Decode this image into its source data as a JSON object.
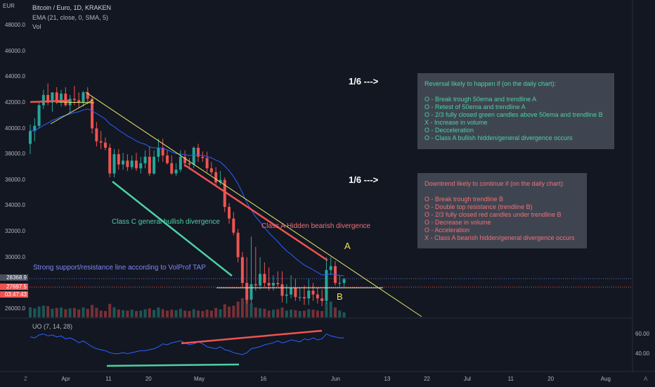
{
  "header": {
    "currency": "EUR",
    "title": "Bitcoin / Euro, 1D, KRAKEN",
    "ema_label": "EMA (21, close, 0, SMA, 5)",
    "vol_label": "Vol"
  },
  "price_axis": {
    "ticks": [
      "48000.0",
      "46000.0",
      "44000.0",
      "42000.0",
      "40000.0",
      "38000.0",
      "36000.0",
      "34000.0",
      "32000.0",
      "30000.0",
      "26000.0"
    ],
    "tags": {
      "last": "28368.9",
      "ema": "27697.5",
      "countdown": "03:47:43"
    }
  },
  "oscillator": {
    "label": "UO (7, 14, 28)",
    "ticks": [
      "60.00",
      "40.00"
    ]
  },
  "time_axis": [
    "Apr",
    "11",
    "20",
    "May",
    "16",
    "Jun",
    "13",
    "22",
    "Jul",
    "11",
    "20",
    "Aug"
  ],
  "bottom_left": "Z",
  "bottom_right": "A",
  "annotations": {
    "badge_top": "1/6 --->",
    "badge_bottom": "1/6  --->",
    "bull_div": "Class C general bullish divergence",
    "bear_div": "Class A Hidden bearish divergence",
    "support": "Strong support/resistance line according to VolProf TAP",
    "point_a": "A",
    "point_b": "B"
  },
  "reversal_box": {
    "title": "Reversal likely to happen if (on the daily chart):",
    "items": [
      "O - Break trough 50ema and trendline A",
      "O - Retest of 50ema and trendline A",
      "O - 2/3 fully closed green candles above 50ema and  trendline B",
      "X - Increase in volume",
      "O - Decceleration",
      "O - Class A bullish hidden/general divergence occurs"
    ]
  },
  "downtrend_box": {
    "title": "Downtrend likely to continue if (on the daily chart):",
    "items": [
      "O - Break trough trendline B",
      "O - Double top resistance (trendline B)",
      "O - 2/3 fully closed red candles under trendline B",
      "O - Decrease in volume",
      "O - Acceleration",
      "X - Class A bearish hidden/general divergence occurs"
    ]
  },
  "colors": {
    "background": "#131722",
    "bull": "#26a69a",
    "bear": "#ef5350",
    "ema": "#2962ff",
    "uo": "#2962ff",
    "trendline": "#e8e66a",
    "bull_div": "#4dd0a6",
    "bear_div": "#f07178",
    "reversal_text": "#4dd0a6",
    "downtrend_text": "#f07178",
    "support_text": "#7e86f5",
    "label_yellow": "#f5e35b"
  },
  "chart_data": {
    "type": "candlestick",
    "title": "Bitcoin / Euro, 1D, KRAKEN",
    "ylim": [
      25000,
      49000
    ],
    "ema_period": 21,
    "dates": [
      "Mar 24",
      "Mar 25",
      "Mar 26",
      "Mar 27",
      "Mar 28",
      "Mar 29",
      "Mar 30",
      "Mar 31",
      "Apr 1",
      "Apr 2",
      "Apr 3",
      "Apr 4",
      "Apr 5",
      "Apr 6",
      "Apr 7",
      "Apr 8",
      "Apr 9",
      "Apr 10",
      "Apr 11",
      "Apr 12",
      "Apr 13",
      "Apr 14",
      "Apr 15",
      "Apr 16",
      "Apr 17",
      "Apr 18",
      "Apr 19",
      "Apr 20",
      "Apr 21",
      "Apr 22",
      "Apr 23",
      "Apr 24",
      "Apr 25",
      "Apr 26",
      "Apr 27",
      "Apr 28",
      "Apr 29",
      "Apr 30",
      "May 1",
      "May 2",
      "May 3",
      "May 4",
      "May 5",
      "May 6",
      "May 7",
      "May 8",
      "May 9",
      "May 10",
      "May 11",
      "May 12",
      "May 13",
      "May 14",
      "May 15",
      "May 16",
      "May 17",
      "May 18",
      "May 19",
      "May 20",
      "May 21",
      "May 22",
      "May 23",
      "May 24",
      "May 25",
      "May 26",
      "May 27",
      "May 28",
      "May 29",
      "May 30",
      "May 31",
      "Jun 1",
      "Jun 2",
      "Jun 3"
    ],
    "open": [
      38800,
      39800,
      40200,
      41800,
      42600,
      42000,
      42800,
      42000,
      42700,
      41800,
      42300,
      42200,
      42000,
      42800,
      42300,
      40000,
      39000,
      38900,
      38500,
      36500,
      38000,
      37200,
      37500,
      37000,
      37500,
      36900,
      37300,
      37800,
      36500,
      37800,
      38500,
      37900,
      37300,
      36500,
      36800,
      37800,
      37300,
      37200,
      38500,
      37800,
      37700,
      36900,
      36600,
      35800,
      36000,
      33900,
      33000,
      31900,
      30000,
      28000,
      26700,
      27900,
      27800,
      28700,
      28000,
      27800,
      28000,
      27900,
      27000,
      27100,
      27600,
      26900,
      26900,
      26800,
      27400,
      27100,
      26800,
      26600,
      29000,
      29300,
      28000,
      28000
    ],
    "high": [
      40300,
      40800,
      42100,
      43000,
      43500,
      42700,
      43200,
      43000,
      43200,
      42600,
      43300,
      42800,
      42900,
      43200,
      42500,
      40500,
      39800,
      39300,
      38800,
      38400,
      38400,
      38100,
      38000,
      37900,
      38100,
      37800,
      38300,
      38600,
      38300,
      39200,
      39200,
      38300,
      37900,
      37300,
      38300,
      38300,
      37700,
      38600,
      38800,
      38200,
      38200,
      37400,
      37000,
      36700,
      36200,
      34200,
      33500,
      32200,
      30400,
      30000,
      31600,
      30800,
      30000,
      29600,
      29200,
      28600,
      28900,
      28900,
      27900,
      28600,
      28300,
      27600,
      27800,
      28300,
      28000,
      27600,
      27500,
      30000,
      30000,
      29700,
      28600,
      28400
    ],
    "low": [
      38000,
      39000,
      40000,
      41500,
      41800,
      41300,
      41900,
      41700,
      41700,
      41200,
      41800,
      41600,
      41700,
      41900,
      39600,
      38600,
      38400,
      38300,
      36200,
      36200,
      36800,
      36800,
      36700,
      36800,
      36700,
      36500,
      36900,
      36300,
      36400,
      37400,
      37400,
      37200,
      36400,
      36300,
      36600,
      37000,
      36800,
      36900,
      37400,
      37400,
      36600,
      36400,
      35500,
      35600,
      33500,
      32600,
      31700,
      29600,
      27600,
      26400,
      26400,
      27400,
      27500,
      27700,
      27400,
      27400,
      27700,
      26500,
      26400,
      26800,
      26600,
      26600,
      26300,
      26300,
      26600,
      26400,
      26200,
      26400,
      28600,
      27800,
      27600,
      27700
    ],
    "close": [
      39800,
      40200,
      41800,
      42600,
      42000,
      42800,
      42000,
      42700,
      41800,
      42300,
      42200,
      42000,
      42800,
      42300,
      40000,
      39000,
      38900,
      38500,
      36500,
      38000,
      37200,
      37500,
      37000,
      37500,
      36900,
      37300,
      37800,
      36500,
      37800,
      38500,
      37900,
      37300,
      36500,
      36800,
      37800,
      37300,
      37200,
      38500,
      37800,
      37700,
      36900,
      36600,
      35800,
      36000,
      33900,
      33000,
      31900,
      30000,
      28000,
      26700,
      27900,
      27800,
      28700,
      28000,
      27800,
      28000,
      27900,
      27000,
      27100,
      27600,
      26900,
      26900,
      26800,
      27400,
      27100,
      26800,
      26600,
      29000,
      29300,
      28000,
      28000,
      28300
    ],
    "volume": [
      45,
      40,
      48,
      52,
      50,
      38,
      42,
      44,
      36,
      40,
      41,
      35,
      44,
      38,
      55,
      42,
      30,
      28,
      60,
      45,
      35,
      32,
      30,
      34,
      28,
      30,
      36,
      40,
      33,
      44,
      36,
      30,
      34,
      32,
      38,
      30,
      28,
      36,
      30,
      28,
      34,
      30,
      42,
      36,
      58,
      48,
      52,
      70,
      85,
      100,
      62,
      44,
      40,
      38,
      30,
      34,
      36,
      44,
      30,
      34,
      32,
      28,
      30,
      36,
      34,
      30,
      28,
      66,
      70,
      44,
      30,
      22
    ],
    "uo": [
      58,
      57,
      60,
      61,
      59,
      60,
      58,
      59,
      56,
      57,
      55,
      52,
      54,
      51,
      48,
      46,
      45,
      44,
      42,
      41,
      41,
      42,
      41,
      42,
      43,
      44,
      44,
      45,
      46,
      48,
      51,
      50,
      52,
      53,
      54,
      52,
      50,
      51,
      53,
      51,
      48,
      47,
      46,
      48,
      45,
      44,
      42,
      41,
      40,
      42,
      46,
      47,
      48,
      50,
      51,
      52,
      54,
      52,
      53,
      55,
      54,
      53,
      56,
      55,
      57,
      55,
      56,
      61,
      59,
      58,
      57,
      57
    ]
  }
}
